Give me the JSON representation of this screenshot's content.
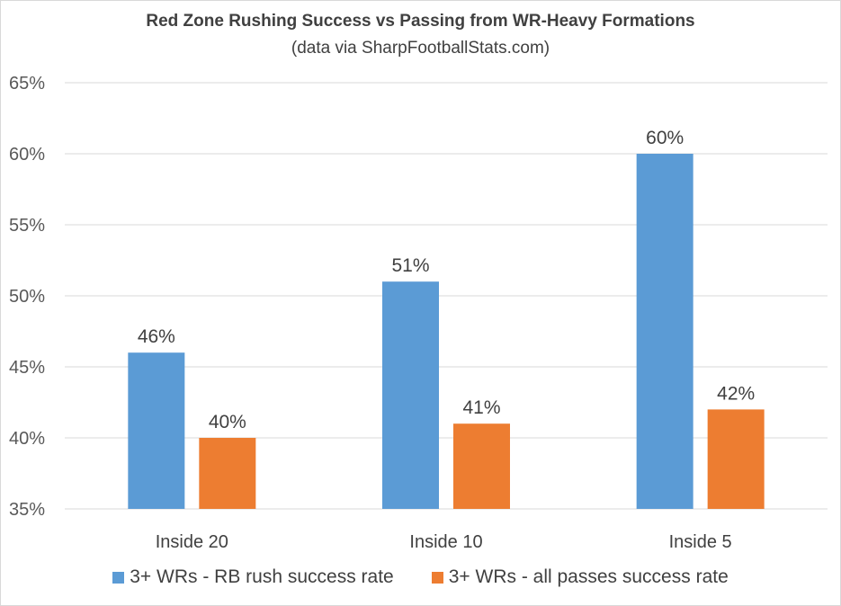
{
  "chart_data": {
    "type": "bar",
    "title": "Red Zone Rushing Success vs Passing from WR-Heavy Formations",
    "subtitle": "(data via SharpFootballStats.com)",
    "categories": [
      "Inside 20",
      "Inside 10",
      "Inside 5"
    ],
    "series": [
      {
        "name": "3+ WRs - RB rush success rate",
        "values": [
          46,
          51,
          60
        ],
        "labels": [
          "46%",
          "51%",
          "60%"
        ],
        "color": "#5b9bd5"
      },
      {
        "name": "3+ WRs - all passes success rate",
        "values": [
          40,
          41,
          42
        ],
        "labels": [
          "40%",
          "41%",
          "42%"
        ],
        "color": "#ed7d31"
      }
    ],
    "ylim": [
      35,
      65
    ],
    "yticks": [
      35,
      40,
      45,
      50,
      55,
      60,
      65
    ],
    "ytick_labels": [
      "35%",
      "40%",
      "45%",
      "50%",
      "55%",
      "60%",
      "65%"
    ],
    "xlabel": "",
    "ylabel": "",
    "grid": true,
    "legend_position": "bottom"
  }
}
